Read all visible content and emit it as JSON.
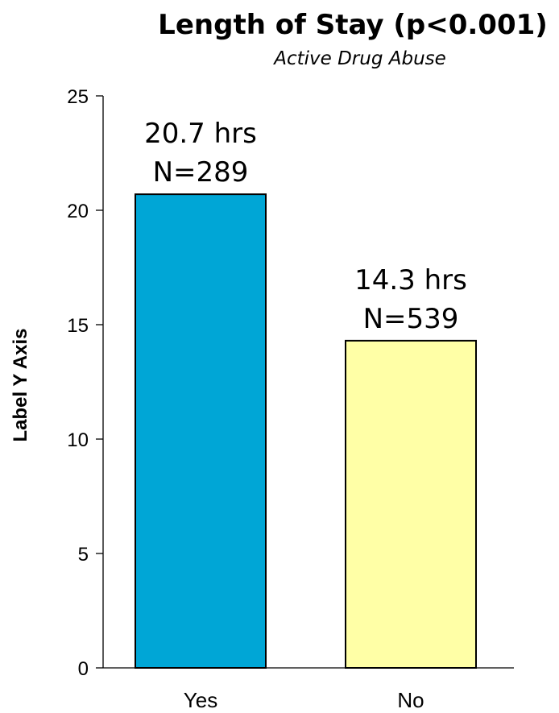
{
  "chart_data": {
    "type": "bar",
    "title": "Length of Stay (p<0.001)",
    "subtitle": "Active Drug Abuse",
    "ylabel": "Label Y Axis",
    "xlabel": "",
    "categories": [
      "Yes",
      "No"
    ],
    "values": [
      20.7,
      14.3
    ],
    "data_labels": [
      [
        "20.7 hrs",
        "N=289"
      ],
      [
        "14.3 hrs",
        "N=539"
      ]
    ],
    "ylim": [
      0,
      25
    ],
    "yticks": [
      0,
      5,
      10,
      15,
      20,
      25
    ],
    "grid": false,
    "legend": "none",
    "bar_colors": [
      "#00a6d6",
      "#ffffa6"
    ],
    "bar_outline": "#000000"
  }
}
